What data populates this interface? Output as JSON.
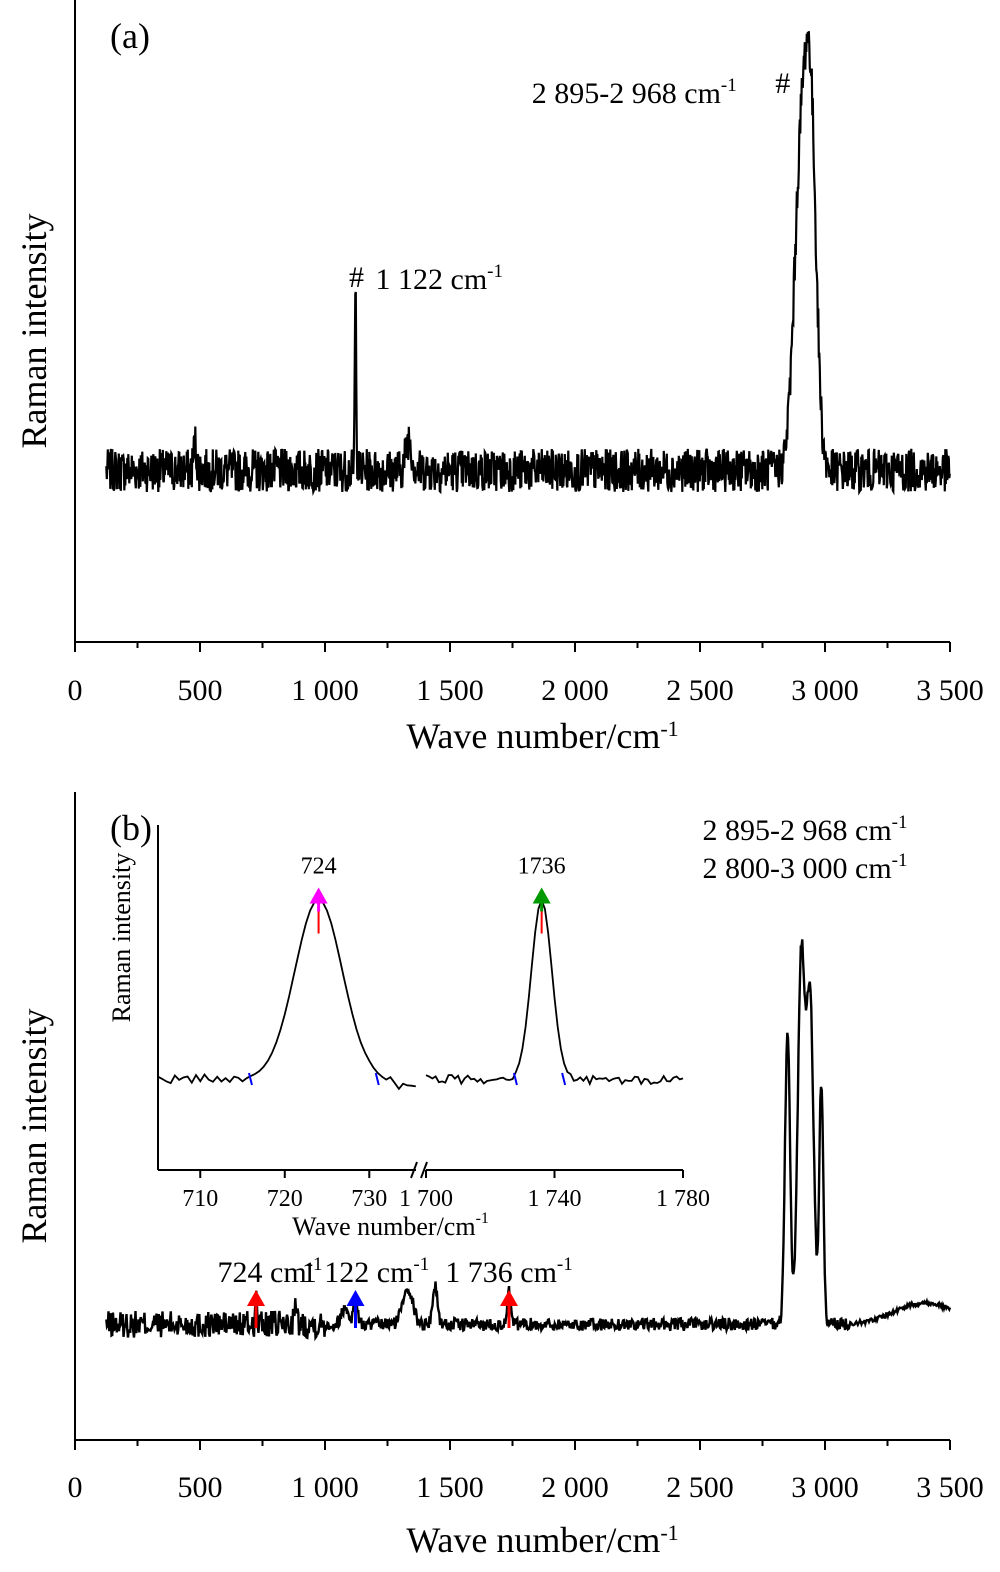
{
  "chart_data": [
    {
      "panel": "(a)",
      "type": "line",
      "xlabel": "Wave number/cm",
      "xlabel_sup": "-1",
      "ylabel": "Raman intensity",
      "xlim": [
        0,
        3500
      ],
      "xticks": [
        0,
        500,
        1000,
        1500,
        2000,
        2500,
        3000,
        3500
      ],
      "xtick_labels": [
        "0",
        "500",
        "1 000",
        "1 500",
        "2 000",
        "2 500",
        "3 000",
        "3 500"
      ],
      "ylim": [
        0,
        1
      ],
      "baseline": 0.24,
      "peaks": [
        {
          "x": 480,
          "height": 0.05,
          "width": 6
        },
        {
          "x": 1122,
          "height": 0.33,
          "width": 3
        },
        {
          "x": 1335,
          "height": 0.06,
          "width": 12
        },
        {
          "x": 2905,
          "height": 0.58,
          "width": 28
        },
        {
          "x": 2945,
          "height": 0.52,
          "width": 22
        }
      ],
      "noise_amplitude": 0.04,
      "annotations": [
        {
          "marker": "#",
          "text": "1 122 cm",
          "sup": "-1",
          "x": 1122,
          "y": 0.58
        },
        {
          "marker": "#",
          "text": "2 895-2 968 cm",
          "sup": "-1",
          "x": 2935,
          "y": 0.93
        }
      ]
    },
    {
      "panel": "(b)",
      "type": "line",
      "xlabel": "Wave number/cm",
      "xlabel_sup": "-1",
      "ylabel": "Raman intensity",
      "xlim": [
        0,
        3500
      ],
      "xticks": [
        0,
        500,
        1000,
        1500,
        2000,
        2500,
        3000,
        3500
      ],
      "xtick_labels": [
        "0",
        "500",
        "1 000",
        "1 500",
        "2 000",
        "2 500",
        "3 000",
        "3 500"
      ],
      "ylim": [
        0,
        1
      ],
      "baseline": 0.14,
      "peaks": [
        {
          "x": 724,
          "height": 0.05,
          "width": 3
        },
        {
          "x": 880,
          "height": 0.03,
          "width": 6
        },
        {
          "x": 1080,
          "height": 0.03,
          "width": 15
        },
        {
          "x": 1122,
          "height": 0.05,
          "width": 8
        },
        {
          "x": 1330,
          "height": 0.07,
          "width": 20
        },
        {
          "x": 1440,
          "height": 0.07,
          "width": 10
        },
        {
          "x": 1736,
          "height": 0.06,
          "width": 6
        },
        {
          "x": 2850,
          "height": 0.55,
          "width": 10
        },
        {
          "x": 2905,
          "height": 0.68,
          "width": 14
        },
        {
          "x": 2940,
          "height": 0.6,
          "width": 14
        },
        {
          "x": 2985,
          "height": 0.45,
          "width": 8
        },
        {
          "x": 3400,
          "height": 0.04,
          "width": 120
        }
      ],
      "annotations": [
        {
          "text": "724 cm",
          "sup": "-1",
          "x": 724,
          "color": "#ff0000"
        },
        {
          "text": "1 122 cm",
          "sup": "-1",
          "x": 1122,
          "color": "#0000ff"
        },
        {
          "text": "1 736 cm",
          "sup": "-1",
          "x": 1736,
          "color": "#ff0000"
        }
      ],
      "top_labels": [
        {
          "text": "2 895-2 968 cm",
          "sup": "-1",
          "color": "#0000ff"
        },
        {
          "text": "2 800-3 000 cm",
          "sup": "-1",
          "color": "#ff0000"
        }
      ],
      "inset": {
        "type": "line",
        "xlabel": "Wave number/cm",
        "xlabel_sup": "-1",
        "ylabel": "Raman intensity",
        "broken_axis": true,
        "segments": [
          {
            "xlim": [
              705,
              736
            ],
            "xticks": [
              710,
              720,
              730
            ],
            "xtick_labels": [
              "710",
              "720",
              "730"
            ],
            "peak": {
              "x": 724,
              "label": "724",
              "color": "#ff00ff"
            }
          },
          {
            "xlim": [
              1700,
              1780
            ],
            "xticks": [
              1700,
              1740,
              1780
            ],
            "xtick_labels": [
              "1 700",
              "1 740",
              "1 780"
            ],
            "peak": {
              "x": 1736,
              "label": "1736",
              "color": "#009900"
            }
          }
        ]
      }
    }
  ]
}
